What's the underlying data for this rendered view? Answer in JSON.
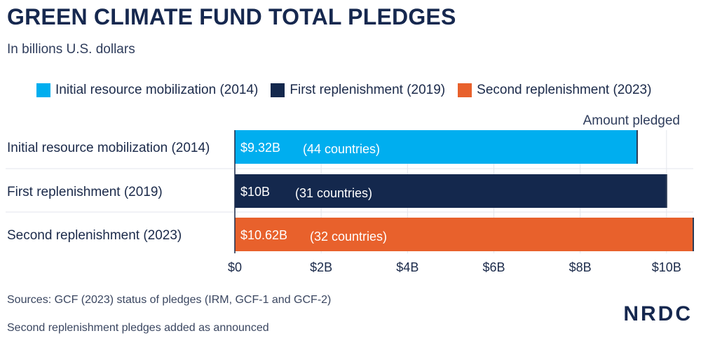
{
  "header": {
    "title": "GREEN CLIMATE FUND TOTAL PLEDGES",
    "subtitle": "In billions U.S. dollars"
  },
  "footer": {
    "source": "Sources: GCF (2023) status of pledges (IRM, GCF-1 and GCF-2)",
    "note": "Second replenishment pledges added as announced",
    "logo": "NRDC"
  },
  "chart_data": {
    "type": "bar",
    "orientation": "horizontal",
    "x_axis_title": "Amount pledged",
    "xlim": [
      0,
      10.62
    ],
    "ticks": [
      {
        "value": 0,
        "label": "$0"
      },
      {
        "value": 2,
        "label": "$2B"
      },
      {
        "value": 4,
        "label": "$4B"
      },
      {
        "value": 6,
        "label": "$6B"
      },
      {
        "value": 8,
        "label": "$8B"
      },
      {
        "value": 10,
        "label": "$10B"
      }
    ],
    "grid": true,
    "legend_position": "top",
    "categories": [
      "Initial resource mobilization (2014)",
      "First replenishment (2019)",
      "Second replenishment (2023)"
    ],
    "values": [
      9.32,
      10,
      10.62
    ],
    "value_labels": [
      "$9.32B",
      "$10B",
      "$10.62B"
    ],
    "country_labels": [
      "(44 countries)",
      "(31 countries)",
      "(32 countries)"
    ],
    "colors": [
      "#00aeef",
      "#14284d",
      "#e8612c"
    ],
    "legend": [
      "Initial resource mobilization (2014)",
      "First replenishment (2019)",
      "Second replenishment (2023)"
    ]
  }
}
